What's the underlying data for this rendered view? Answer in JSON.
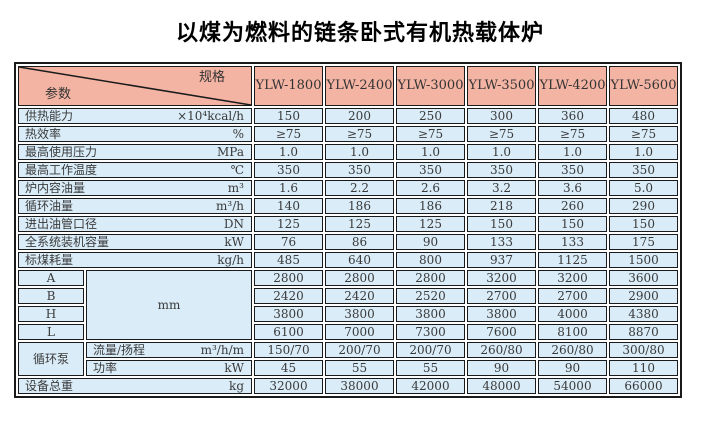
{
  "title": "以煤为燃料的链条卧式有机热载体炉",
  "colors": {
    "header_bg": "#f4b4a4",
    "cell_bg": "#d9ecf8",
    "border": "#1a1a1a",
    "title_text": "#000000",
    "cell_text": "#3a3a3a"
  },
  "table": {
    "corner": {
      "top_right": "规格",
      "bottom_left": "参数"
    },
    "models": [
      "YLW-1800",
      "YLW-2400",
      "YLW-3000",
      "YLW-3500",
      "YLW-4200",
      "YLW-5600"
    ],
    "rows": [
      {
        "label": "供热能力",
        "unit": "×10⁴kcal/h",
        "values": [
          "150",
          "200",
          "250",
          "300",
          "360",
          "480"
        ]
      },
      {
        "label": "热效率",
        "unit": "%",
        "values": [
          "≥75",
          "≥75",
          "≥75",
          "≥75",
          "≥75",
          "≥75"
        ]
      },
      {
        "label": "最高使用压力",
        "unit": "MPa",
        "values": [
          "1.0",
          "1.0",
          "1.0",
          "1.0",
          "1.0",
          "1.0"
        ]
      },
      {
        "label": "最高工作温度",
        "unit": "℃",
        "values": [
          "350",
          "350",
          "350",
          "350",
          "350",
          "350"
        ]
      },
      {
        "label": "炉内容油量",
        "unit": "m³",
        "values": [
          "1.6",
          "2.2",
          "2.6",
          "3.2",
          "3.6",
          "5.0"
        ]
      },
      {
        "label": "循环油量",
        "unit": "m³/h",
        "values": [
          "140",
          "186",
          "186",
          "218",
          "260",
          "290"
        ]
      },
      {
        "label": "进出油管口径",
        "unit": "DN",
        "values": [
          "125",
          "125",
          "125",
          "150",
          "150",
          "150"
        ]
      },
      {
        "label": "全系统装机容量",
        "unit": "kW",
        "values": [
          "76",
          "86",
          "90",
          "133",
          "133",
          "175"
        ]
      },
      {
        "label": "标煤耗量",
        "unit": "kg/h",
        "values": [
          "485",
          "640",
          "800",
          "937",
          "1125",
          "1500"
        ]
      }
    ],
    "dimensions": {
      "unit": "mm",
      "rows": [
        {
          "label": "A",
          "values": [
            "2800",
            "2800",
            "2800",
            "3200",
            "3200",
            "3600"
          ]
        },
        {
          "label": "B",
          "values": [
            "2420",
            "2420",
            "2520",
            "2700",
            "2700",
            "2900"
          ]
        },
        {
          "label": "H",
          "values": [
            "3800",
            "3800",
            "3800",
            "3800",
            "4000",
            "4380"
          ]
        },
        {
          "label": "L",
          "values": [
            "6100",
            "7000",
            "7300",
            "7600",
            "8100",
            "8870"
          ]
        }
      ]
    },
    "pump": {
      "label": "循环泵",
      "rows": [
        {
          "label": "流量/扬程",
          "unit": "m³/h/m",
          "values": [
            "150/70",
            "200/70",
            "200/70",
            "260/80",
            "260/80",
            "300/80"
          ]
        },
        {
          "label": "功率",
          "unit": "kW",
          "values": [
            "45",
            "55",
            "55",
            "90",
            "90",
            "110"
          ]
        }
      ]
    },
    "total": {
      "label": "设备总重",
      "unit": "kg",
      "values": [
        "32000",
        "38000",
        "42000",
        "48000",
        "54000",
        "66000"
      ]
    }
  }
}
